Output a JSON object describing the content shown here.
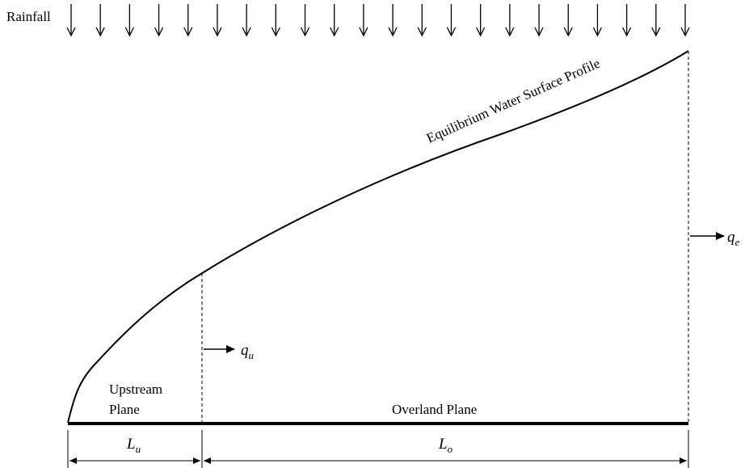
{
  "diagram": {
    "rainfall_label": "Rainfall",
    "profile_label": "Equilibrium Water Surface Profile",
    "upstream_plane_label_line1": "Upstream",
    "upstream_plane_label_line2": "Plane",
    "overland_plane_label": "Overland Plane",
    "q_u": {
      "base": "q",
      "sub": "u"
    },
    "q_e": {
      "base": "q",
      "sub": "e"
    },
    "L_u": {
      "base": "L",
      "sub": "u"
    },
    "L_o": {
      "base": "L",
      "sub": "o"
    },
    "rainfall_arrow_count": 22,
    "colors": {
      "line": "#000000",
      "background": "#ffffff"
    }
  }
}
